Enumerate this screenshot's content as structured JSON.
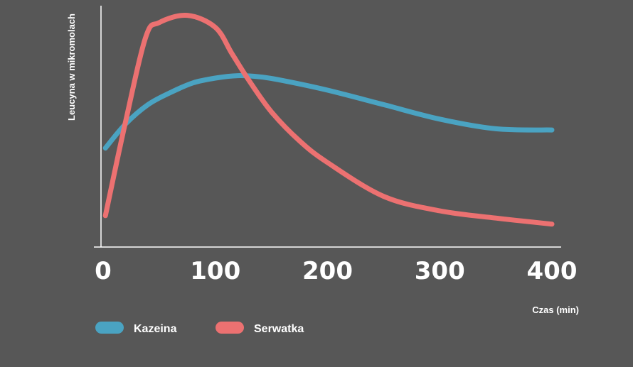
{
  "chart_data": {
    "type": "line",
    "title": "",
    "xlabel": "Czas (min)",
    "ylabel": "Leucyna w mikromolach",
    "xlim": [
      0,
      410
    ],
    "ylim": [
      0,
      100
    ],
    "xticks": [
      "0",
      "100",
      "200",
      "300",
      "400"
    ],
    "xtick_values": [
      0,
      100,
      200,
      300,
      400
    ],
    "grid": false,
    "legend_position": "bottom-left",
    "series": [
      {
        "name": "Kazeina",
        "color": "#4aa3c2",
        "x": [
          2,
          20,
          40,
          60,
          80,
          100,
          120,
          140,
          160,
          200,
          250,
          300,
          350,
          400
        ],
        "y": [
          41,
          51,
          59,
          64,
          68,
          70,
          71,
          70.5,
          69,
          65,
          59,
          53,
          49,
          48.5
        ]
      },
      {
        "name": "Serwatka",
        "color": "#ec7171",
        "x": [
          2,
          20,
          38,
          50,
          75,
          100,
          115,
          130,
          150,
          175,
          200,
          250,
          300,
          350,
          400
        ],
        "y": [
          13,
          52,
          87,
          93,
          96,
          91,
          80,
          69,
          56,
          44,
          35,
          21,
          15,
          12,
          9.5
        ]
      }
    ]
  }
}
